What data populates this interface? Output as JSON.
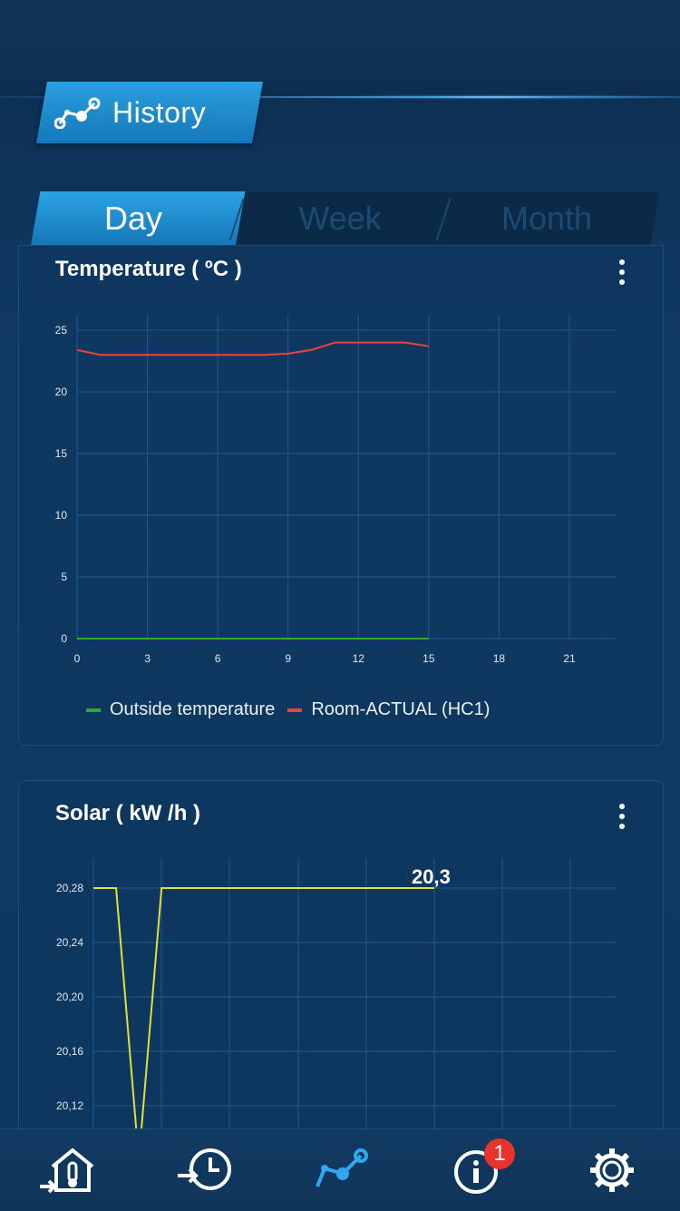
{
  "header": {
    "title": "History",
    "icon": "history-graph-icon"
  },
  "tabs": [
    {
      "label": "Day",
      "active": true
    },
    {
      "label": "Week",
      "active": false
    },
    {
      "label": "Month",
      "active": false
    }
  ],
  "temperature_card": {
    "title": "Temperature ( ºC )"
  },
  "solar_card": {
    "title": "Solar ( kW /h )",
    "value_label": "20,3"
  },
  "legend": {
    "outside": {
      "label": "Outside temperature",
      "color": "#2ea836"
    },
    "room": {
      "label": "Room-ACTUAL (HC1)",
      "color": "#e8463c"
    }
  },
  "nav": {
    "items": [
      "home-thermometer-icon",
      "clock-history-icon",
      "graph-icon",
      "info-icon",
      "settings-gear-icon"
    ],
    "badge": "1",
    "active": "graph-icon"
  },
  "chart_data": [
    {
      "type": "line",
      "title": "Temperature ( ºC )",
      "xlim": [
        0,
        23
      ],
      "ylim": [
        0,
        26
      ],
      "xticks": [
        "0",
        "3",
        "6",
        "9",
        "12",
        "15",
        "18",
        "21"
      ],
      "yticks": [
        "0",
        "5",
        "10",
        "15",
        "20",
        "25"
      ],
      "grid": true,
      "legend_position": "bottom",
      "series": [
        {
          "name": "Outside temperature",
          "color": "#2ea836",
          "x": [
            0,
            15
          ],
          "y": [
            0,
            0
          ]
        },
        {
          "name": "Room-ACTUAL (HC1)",
          "color": "#e8463c",
          "x": [
            0,
            1,
            2,
            3,
            4,
            5,
            6,
            7,
            8,
            9,
            10,
            11,
            12,
            13,
            14,
            15
          ],
          "y": [
            23.4,
            23.0,
            23.0,
            23.0,
            23.0,
            23.0,
            23.0,
            23.0,
            23.0,
            23.1,
            23.4,
            24.0,
            24.0,
            24.0,
            24.0,
            23.7
          ]
        }
      ]
    },
    {
      "type": "line",
      "title": "Solar ( kW /h )",
      "ylim": [
        20.1,
        20.3
      ],
      "yticks": [
        "20,12",
        "20,16",
        "20,20",
        "20,24",
        "20,28"
      ],
      "xlim": [
        0,
        23
      ],
      "grid": true,
      "annotations": [
        "20,3"
      ],
      "series": [
        {
          "color": "#e2e036",
          "x": [
            0,
            1,
            2,
            3,
            4,
            5,
            6,
            7,
            8,
            9,
            10,
            11,
            12,
            13,
            14,
            15
          ],
          "y": [
            20.28,
            20.28,
            20.08,
            20.28,
            20.28,
            20.28,
            20.28,
            20.28,
            20.28,
            20.28,
            20.28,
            20.28,
            20.28,
            20.28,
            20.28,
            20.28
          ]
        }
      ]
    }
  ]
}
